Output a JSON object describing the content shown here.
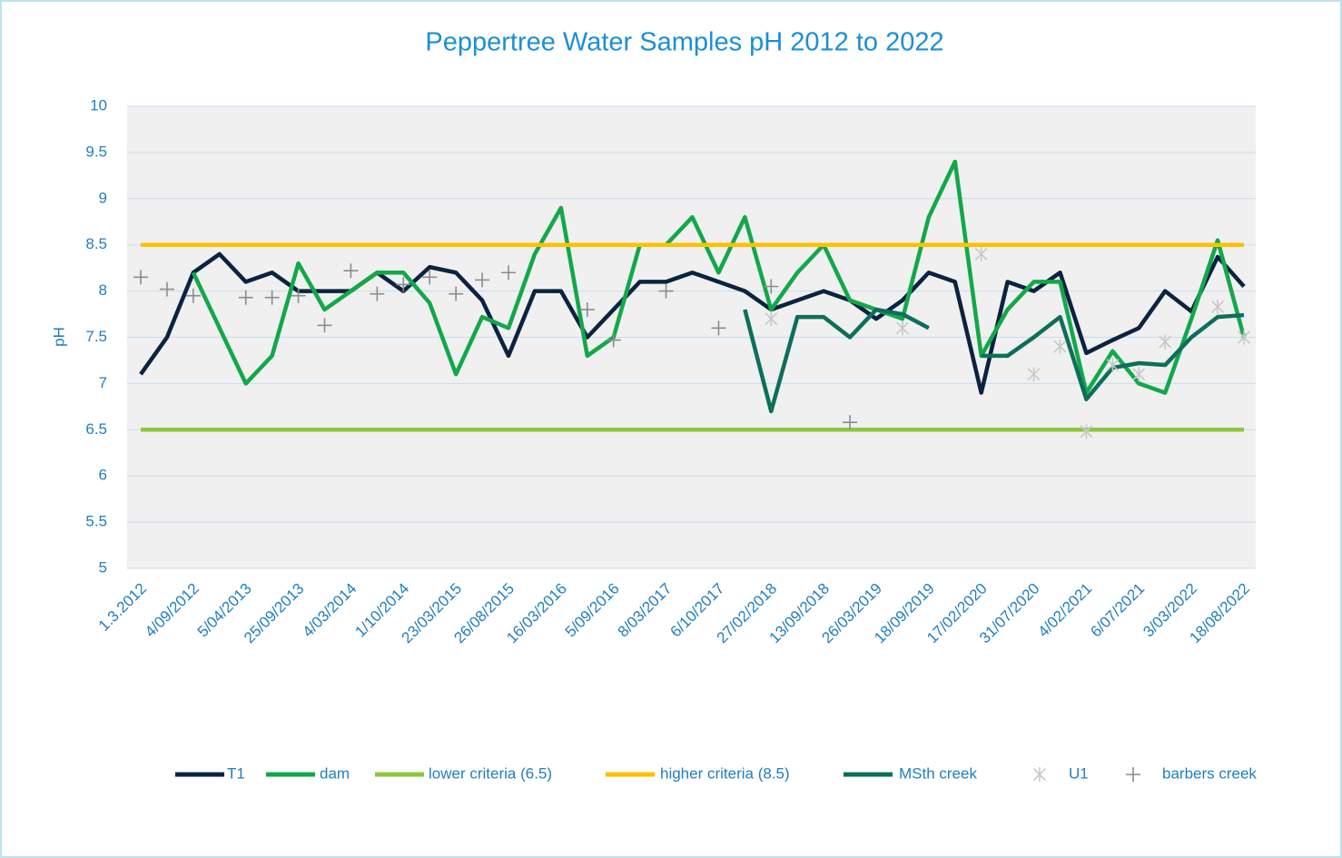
{
  "chart_data": {
    "type": "line",
    "title": "Peppertree Water Samples pH 2012 to 2022",
    "y_label": "pH",
    "categories": [
      "1.3.2012",
      null,
      "4/09/2012",
      null,
      "5/04/2013",
      null,
      "25/09/2013",
      null,
      "4/03/2014",
      null,
      "1/10/2014",
      null,
      "23/03/2015",
      null,
      "26/08/2015",
      null,
      "16/03/2016",
      null,
      "5/09/2016",
      null,
      "8/03/2017",
      null,
      "6/10/2017",
      null,
      "27/02/2018",
      null,
      "13/09/2018",
      null,
      "26/03/2019",
      null,
      "18/09/2019",
      null,
      "17/02/2020",
      null,
      "31/07/2020",
      null,
      "4/02/2021",
      null,
      "6/07/2021",
      null,
      "3/03/2022",
      null,
      "18/08/2022"
    ],
    "ylim": [
      5,
      10
    ],
    "yticks": [
      5,
      5.5,
      6,
      6.5,
      7,
      7.5,
      8,
      8.5,
      9,
      9.5,
      10
    ],
    "grid": true,
    "legend": "bottom",
    "series": [
      {
        "name": "T1",
        "color": "#0b2340",
        "values": [
          7.1,
          7.5,
          8.2,
          8.4,
          8.1,
          8.2,
          8.0,
          8.0,
          8.0,
          8.2,
          8.0,
          8.26,
          8.2,
          7.9,
          7.3,
          8.0,
          8.0,
          7.5,
          7.8,
          8.1,
          8.1,
          8.2,
          8.1,
          8.0,
          7.8,
          7.9,
          8.0,
          7.9,
          7.7,
          7.9,
          8.2,
          8.1,
          6.9,
          8.1,
          8.0,
          8.2,
          7.33,
          7.47,
          7.6,
          8.0,
          7.78,
          8.37,
          8.05
        ]
      },
      {
        "name": "dam",
        "color": "#12a84a",
        "values": [
          null,
          null,
          8.2,
          7.6,
          7.0,
          7.3,
          8.3,
          7.8,
          8.0,
          8.2,
          8.2,
          7.87,
          7.1,
          7.72,
          7.6,
          8.4,
          8.9,
          7.3,
          7.5,
          8.5,
          8.5,
          8.8,
          8.2,
          8.8,
          7.8,
          8.2,
          8.5,
          7.9,
          7.8,
          7.7,
          8.8,
          9.4,
          7.3,
          7.8,
          8.1,
          8.1,
          6.9,
          7.35,
          7.0,
          6.9,
          7.7,
          8.55,
          7.5
        ]
      },
      {
        "name": "lower criteria (6.5)",
        "color": "#8dc63f",
        "values": [
          6.5,
          6.5,
          6.5,
          6.5,
          6.5,
          6.5,
          6.5,
          6.5,
          6.5,
          6.5,
          6.5,
          6.5,
          6.5,
          6.5,
          6.5,
          6.5,
          6.5,
          6.5,
          6.5,
          6.5,
          6.5,
          6.5,
          6.5,
          6.5,
          6.5,
          6.5,
          6.5,
          6.5,
          6.5,
          6.5,
          6.5,
          6.5,
          6.5,
          6.5,
          6.5,
          6.5,
          6.5,
          6.5,
          6.5,
          6.5,
          6.5,
          6.5,
          6.5
        ]
      },
      {
        "name": "higher criteria (8.5)",
        "color": "#ffc000",
        "values": [
          8.5,
          8.5,
          8.5,
          8.5,
          8.5,
          8.5,
          8.5,
          8.5,
          8.5,
          8.5,
          8.5,
          8.5,
          8.5,
          8.5,
          8.5,
          8.5,
          8.5,
          8.5,
          8.5,
          8.5,
          8.5,
          8.5,
          8.5,
          8.5,
          8.5,
          8.5,
          8.5,
          8.5,
          8.5,
          8.5,
          8.5,
          8.5,
          8.5,
          8.5,
          8.5,
          8.5,
          8.5,
          8.5,
          8.5,
          8.5,
          8.5,
          8.5,
          8.5
        ]
      },
      {
        "name": "MSth creek",
        "color": "#0e6e5c",
        "values": [
          null,
          null,
          null,
          null,
          null,
          null,
          null,
          null,
          null,
          null,
          null,
          null,
          null,
          null,
          null,
          null,
          null,
          null,
          null,
          null,
          null,
          null,
          null,
          7.8,
          6.7,
          7.72,
          7.72,
          7.5,
          7.8,
          7.75,
          7.6,
          null,
          7.3,
          7.3,
          7.5,
          7.72,
          6.83,
          7.17,
          7.22,
          7.2,
          7.5,
          7.72,
          7.74
        ]
      },
      {
        "name": "U1",
        "color": "#c8c8c8",
        "marker": "asterisk",
        "values": [
          null,
          null,
          null,
          null,
          null,
          null,
          null,
          null,
          null,
          null,
          null,
          null,
          null,
          null,
          null,
          null,
          null,
          null,
          null,
          null,
          null,
          null,
          null,
          null,
          7.7,
          null,
          null,
          null,
          null,
          7.6,
          null,
          null,
          8.4,
          null,
          7.1,
          7.4,
          6.48,
          7.2,
          7.1,
          7.45,
          null,
          7.83,
          7.5
        ]
      },
      {
        "name": "barbers creek",
        "color": "#8c8c8c",
        "marker": "plus",
        "values": [
          8.15,
          8.02,
          7.95,
          null,
          7.93,
          7.93,
          7.95,
          7.63,
          8.22,
          7.97,
          8.07,
          8.15,
          7.97,
          8.12,
          8.2,
          null,
          null,
          7.8,
          7.47,
          null,
          8.0,
          null,
          7.6,
          null,
          8.05,
          null,
          null,
          6.58,
          null,
          null,
          null,
          null,
          null,
          null,
          null,
          null,
          null,
          null,
          null,
          null,
          null,
          null,
          null
        ]
      }
    ]
  }
}
